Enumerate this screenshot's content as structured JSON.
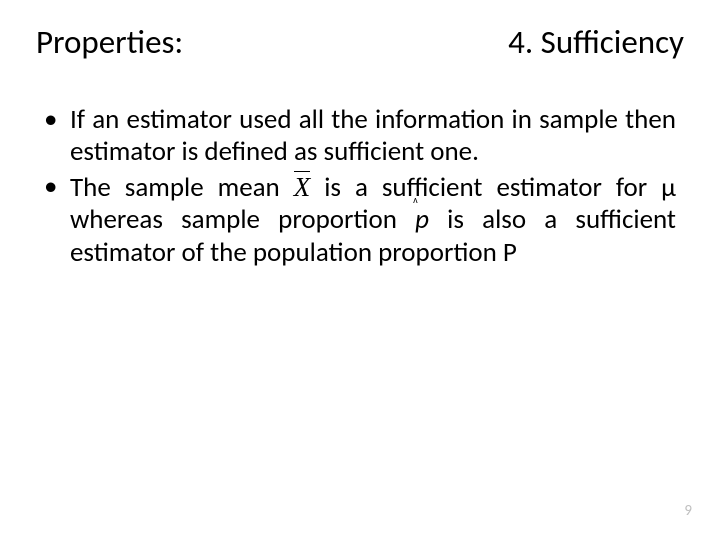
{
  "title": {
    "left": "Properties:",
    "right": "4. Sufficiency"
  },
  "bullets": [
    {
      "pre": "If an estimator used all the information in sample then estimator is defined as sufficient one."
    },
    {
      "part1": "The sample mean ",
      "symbol1": "X",
      "part2": " is a sufficient estimator for μ whereas sample proportion ",
      "symbol2": "p",
      "part3": " is also a sufficient estimator of the population proportion P"
    }
  ],
  "pageNumber": "9",
  "colors": {
    "text": "#000000",
    "pageNumber": "#bfbfbf",
    "background": "#ffffff"
  }
}
